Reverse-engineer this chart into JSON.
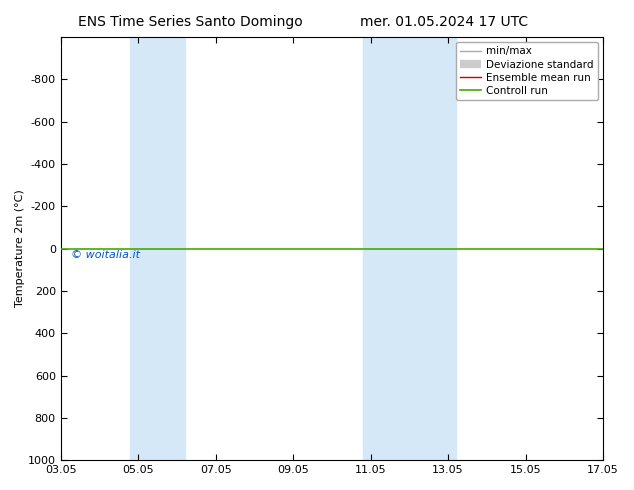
{
  "title_left": "ENS Time Series Santo Domingo",
  "title_right": "mer. 01.05.2024 17 UTC",
  "ylabel": "Temperature 2m (°C)",
  "ylim_top": -1000,
  "ylim_bottom": 1000,
  "yticks": [
    -800,
    -600,
    -400,
    -200,
    0,
    200,
    400,
    600,
    800,
    1000
  ],
  "xtick_labels": [
    "03.05",
    "05.05",
    "07.05",
    "09.05",
    "11.05",
    "13.05",
    "15.05",
    "17.05"
  ],
  "xtick_positions": [
    0,
    2,
    4,
    6,
    8,
    10,
    12,
    14
  ],
  "watermark": "© woitalia.it",
  "watermark_color": "#0055cc",
  "bg_color": "#ffffff",
  "plot_bg_color": "#ffffff",
  "shaded_bands": [
    {
      "x_start": 1.8,
      "x_end": 3.2
    },
    {
      "x_start": 7.8,
      "x_end": 10.2
    }
  ],
  "shaded_color": "#d4e8f8",
  "green_line_y": 0,
  "green_line_color": "#44aa00",
  "green_line_lw": 1.2,
  "font_size_title": 10,
  "font_size_axis_label": 8,
  "font_size_legend": 7.5,
  "font_size_ticks": 8,
  "legend_gray_line_color": "#aaaaaa",
  "legend_gray_band_color": "#cccccc",
  "legend_red_color": "#cc0000",
  "legend_green_color": "#44aa00"
}
